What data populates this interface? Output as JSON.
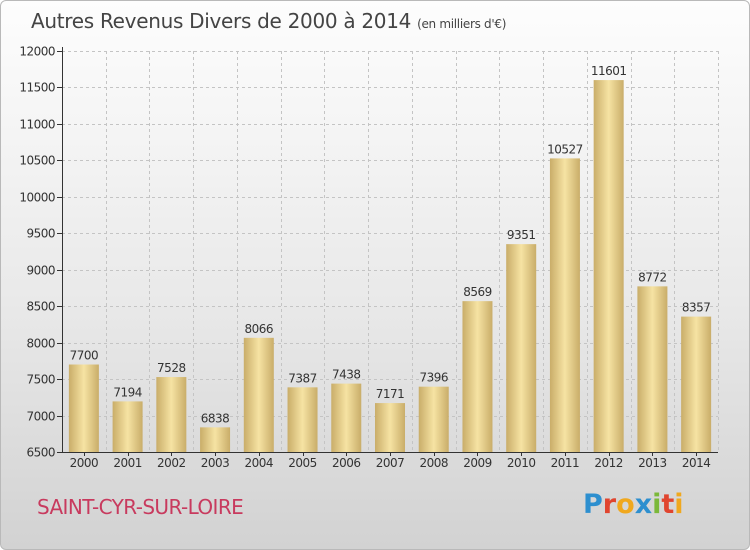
{
  "header": {
    "title": "Autres Revenus Divers de 2000 à 2014",
    "unit": "(en milliers d'€)"
  },
  "footer": {
    "commune": "SAINT-CYR-SUR-LOIRE",
    "logo": [
      "P",
      "r",
      "o",
      "x",
      "i",
      "t",
      "i"
    ],
    "logo_colors": [
      "#2d8fcf",
      "#e0452f",
      "#f0a81e",
      "#2d8fcf",
      "#7bb83a",
      "#e0452f",
      "#f0a81e"
    ]
  },
  "colors": {
    "bar_light": "#f6e3a3",
    "bar_dark": "#c9ad69",
    "axis": "#333333",
    "grid": "#c4c4c4",
    "commune": "#c83a5e"
  },
  "chart_data": {
    "type": "bar",
    "categories": [
      "2000",
      "2001",
      "2002",
      "2003",
      "2004",
      "2005",
      "2006",
      "2007",
      "2008",
      "2009",
      "2010",
      "2011",
      "2012",
      "2013",
      "2014"
    ],
    "values": [
      7700,
      7194,
      7528,
      6838,
      8066,
      7387,
      7438,
      7171,
      7396,
      8569,
      9351,
      10527,
      11601,
      8772,
      8357
    ],
    "ylim": [
      6500,
      12000
    ],
    "yticks": [
      6500,
      7000,
      7500,
      8000,
      8500,
      9000,
      9500,
      10000,
      10500,
      11000,
      11500,
      12000
    ],
    "grid": true,
    "title": "Autres Revenus Divers de 2000 à 2014",
    "xlabel": "",
    "ylabel": ""
  }
}
